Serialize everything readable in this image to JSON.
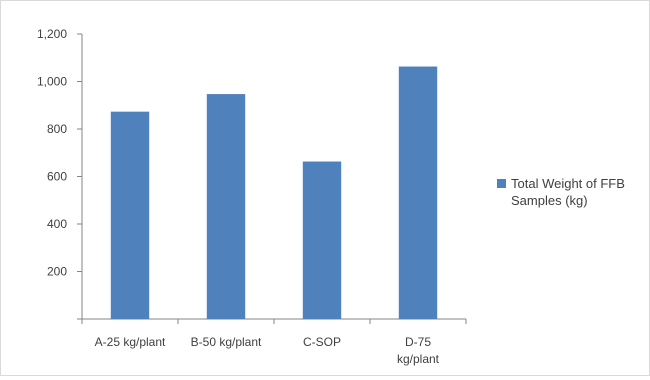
{
  "chart_data": {
    "type": "bar",
    "categories": [
      "A-25 kg/plant",
      "B-50 kg/plant",
      "C-SOP",
      "D-75 kg/plant"
    ],
    "category_lines": [
      [
        "A-25 kg/plant"
      ],
      [
        "B-50 kg/plant"
      ],
      [
        "C-SOP"
      ],
      [
        "D-75",
        "kg/plant"
      ]
    ],
    "series": [
      {
        "name": "Total Weight of FFB Samples (kg)",
        "values": [
          873,
          947,
          663,
          1063
        ]
      }
    ],
    "legend_lines": [
      "Total Weight of FFB",
      "Samples (kg)"
    ],
    "yticks": [
      "",
      "200",
      "400",
      "600",
      "800",
      "1,000",
      "1,200"
    ],
    "ylim": [
      0,
      1200
    ],
    "grid": false,
    "legend": "right",
    "bar_color": "#4f81bd",
    "axis_color": "#868686"
  }
}
